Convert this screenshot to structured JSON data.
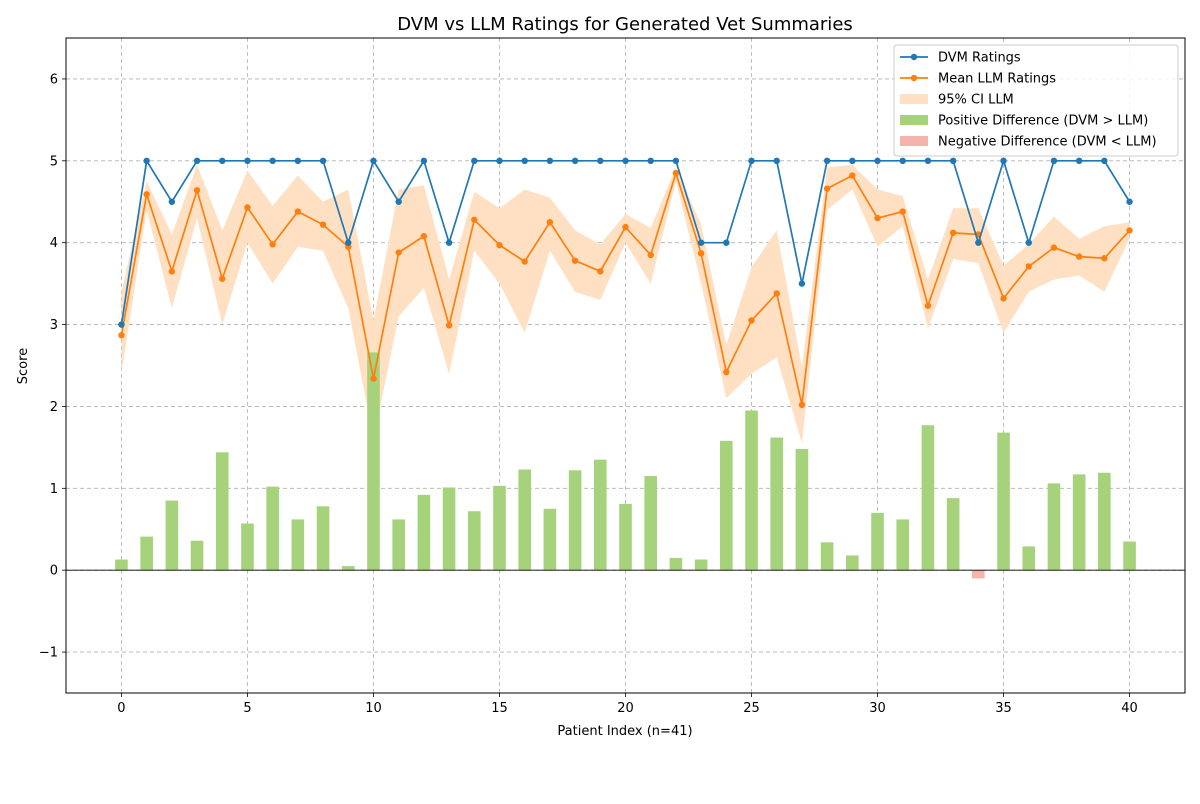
{
  "chart_data": {
    "type": "line",
    "title": "DVM vs LLM Ratings for Generated Vet Summaries",
    "xlabel": "Patient Index (n=41)",
    "ylabel": "Score",
    "xlim": [
      -2.2,
      42.2
    ],
    "ylim": [
      -1.5,
      6.5
    ],
    "xticks": [
      0,
      5,
      10,
      15,
      20,
      25,
      30,
      35,
      40
    ],
    "yticks": [
      -1,
      0,
      1,
      2,
      3,
      4,
      5,
      6
    ],
    "ytick_labels": [
      "−1",
      "0",
      "1",
      "2",
      "3",
      "4",
      "5",
      "6"
    ],
    "grid": true,
    "legend_position": "top-right",
    "x": [
      0,
      1,
      2,
      3,
      4,
      5,
      6,
      7,
      8,
      9,
      10,
      11,
      12,
      13,
      14,
      15,
      16,
      17,
      18,
      19,
      20,
      21,
      22,
      23,
      24,
      25,
      26,
      27,
      28,
      29,
      30,
      31,
      32,
      33,
      34,
      35,
      36,
      37,
      38,
      39,
      40
    ],
    "series": [
      {
        "name": "DVM Ratings",
        "kind": "line",
        "color": "#1f77b4",
        "values": [
          3.0,
          5.0,
          4.5,
          5.0,
          5.0,
          5.0,
          5.0,
          5.0,
          5.0,
          4.0,
          5.0,
          4.5,
          5.0,
          4.0,
          5.0,
          5.0,
          5.0,
          5.0,
          5.0,
          5.0,
          5.0,
          5.0,
          5.0,
          4.0,
          4.0,
          5.0,
          5.0,
          3.5,
          5.0,
          5.0,
          5.0,
          5.0,
          5.0,
          5.0,
          4.0,
          5.0,
          4.0,
          5.0,
          5.0,
          5.0,
          4.5
        ]
      },
      {
        "name": "Mean LLM Ratings",
        "kind": "line",
        "color": "#ff7f0e",
        "values": [
          2.87,
          4.59,
          3.65,
          4.64,
          3.56,
          4.43,
          3.98,
          4.38,
          4.22,
          3.95,
          2.34,
          3.88,
          4.08,
          2.99,
          4.28,
          3.97,
          3.77,
          4.25,
          3.78,
          3.65,
          4.19,
          3.85,
          4.85,
          3.87,
          2.42,
          3.05,
          3.38,
          2.02,
          4.66,
          4.82,
          4.3,
          4.38,
          3.23,
          4.12,
          4.1,
          3.32,
          3.71,
          3.94,
          3.83,
          3.81,
          4.15
        ]
      },
      {
        "name": "95% CI LLM",
        "kind": "band",
        "color": "#ffe0c2",
        "lower": [
          2.4,
          4.4,
          3.2,
          4.3,
          3.0,
          4.0,
          3.5,
          3.95,
          3.9,
          3.2,
          1.6,
          3.1,
          3.45,
          2.4,
          3.9,
          3.5,
          2.9,
          3.9,
          3.4,
          3.3,
          4.0,
          3.5,
          4.75,
          3.5,
          2.1,
          2.4,
          2.6,
          1.55,
          4.4,
          4.65,
          3.95,
          4.2,
          2.95,
          3.8,
          3.75,
          2.9,
          3.4,
          3.55,
          3.6,
          3.4,
          4.05
        ],
        "upper": [
          3.4,
          4.75,
          4.1,
          4.95,
          4.15,
          4.88,
          4.45,
          4.82,
          4.5,
          4.65,
          3.05,
          4.65,
          4.7,
          3.55,
          4.62,
          4.42,
          4.65,
          4.55,
          4.15,
          3.98,
          4.35,
          4.18,
          4.92,
          4.22,
          2.75,
          3.7,
          4.15,
          2.48,
          4.92,
          4.95,
          4.65,
          4.57,
          3.55,
          4.42,
          4.42,
          3.72,
          3.98,
          4.32,
          4.05,
          4.2,
          4.25
        ]
      },
      {
        "name": "Positive Difference (DVM > LLM)",
        "kind": "bar",
        "color": "#a6d27c",
        "values": [
          0.13,
          0.41,
          0.85,
          0.36,
          1.44,
          0.57,
          1.02,
          0.62,
          0.78,
          0.05,
          2.66,
          0.62,
          0.92,
          1.01,
          0.72,
          1.03,
          1.23,
          0.75,
          1.22,
          1.35,
          0.81,
          1.15,
          0.15,
          0.13,
          1.58,
          1.95,
          1.62,
          1.48,
          0.34,
          0.18,
          0.7,
          0.62,
          1.77,
          0.88,
          null,
          1.68,
          0.29,
          1.06,
          1.17,
          1.19,
          0.35
        ]
      },
      {
        "name": "Negative Difference (DVM < LLM)",
        "kind": "bar",
        "color": "#f5b3ae",
        "values": [
          null,
          null,
          null,
          null,
          null,
          null,
          null,
          null,
          null,
          null,
          null,
          null,
          null,
          null,
          null,
          null,
          null,
          null,
          null,
          null,
          null,
          null,
          null,
          null,
          null,
          null,
          null,
          null,
          null,
          null,
          null,
          null,
          null,
          null,
          -0.1,
          null,
          null,
          null,
          null,
          null,
          null
        ]
      }
    ]
  }
}
